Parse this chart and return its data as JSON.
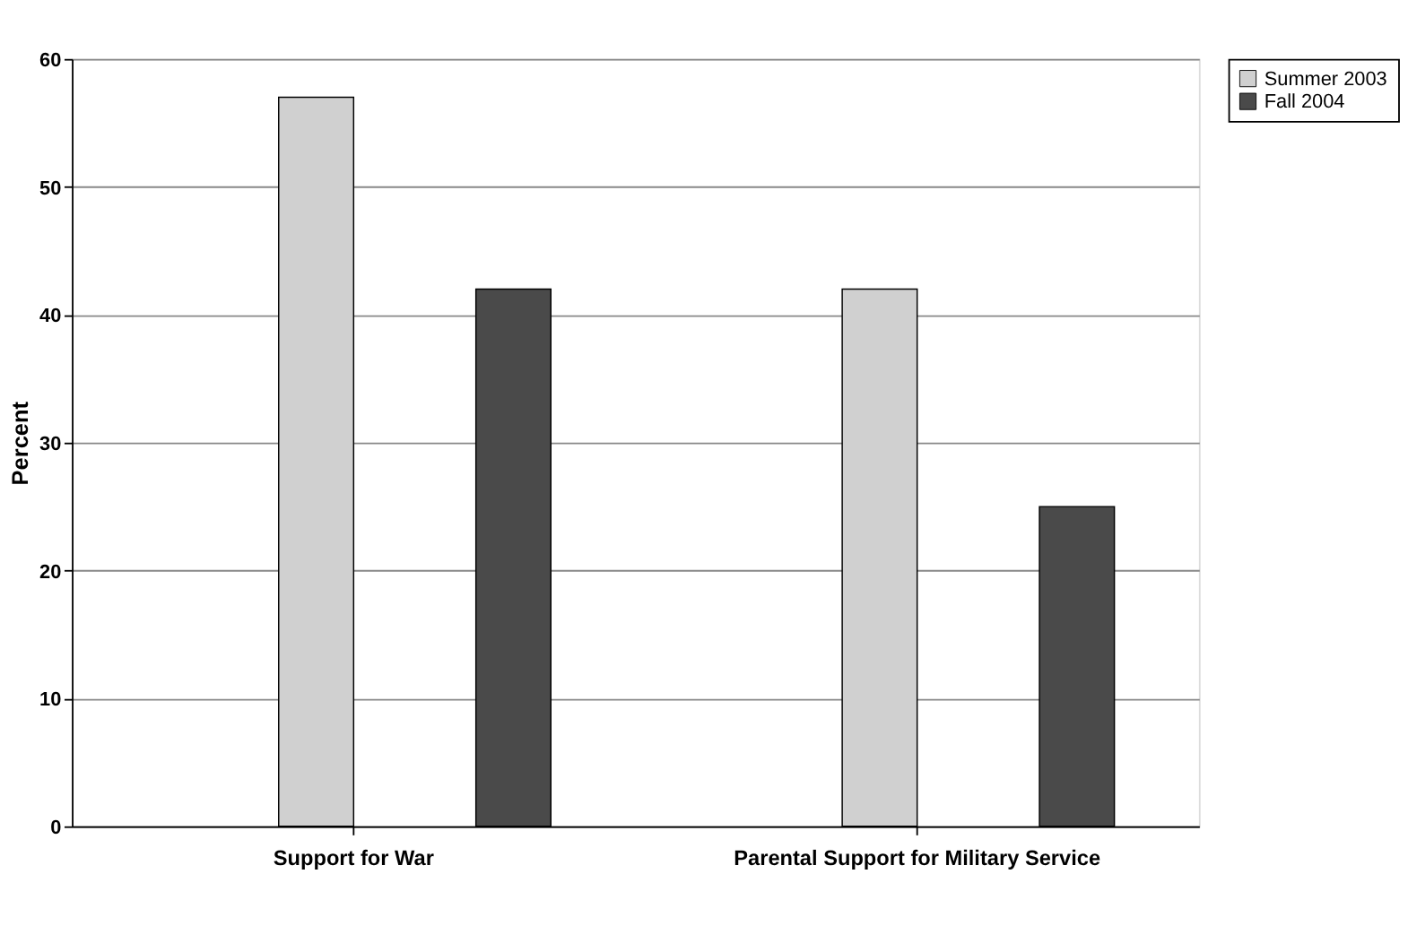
{
  "chart_data": {
    "type": "bar",
    "ylabel": "Percent",
    "categories": [
      "Support for War",
      "Parental Support for Military Service"
    ],
    "series": [
      {
        "name": "Summer 2003",
        "color": "#d0d0d0",
        "values": [
          57,
          42
        ]
      },
      {
        "name": "Fall 2004",
        "color": "#4a4a4a",
        "values": [
          42,
          25
        ]
      }
    ],
    "ylim": [
      0,
      60
    ],
    "yticks": [
      0,
      10,
      20,
      30,
      40,
      50,
      60
    ],
    "grid": "y",
    "legend": "right"
  }
}
